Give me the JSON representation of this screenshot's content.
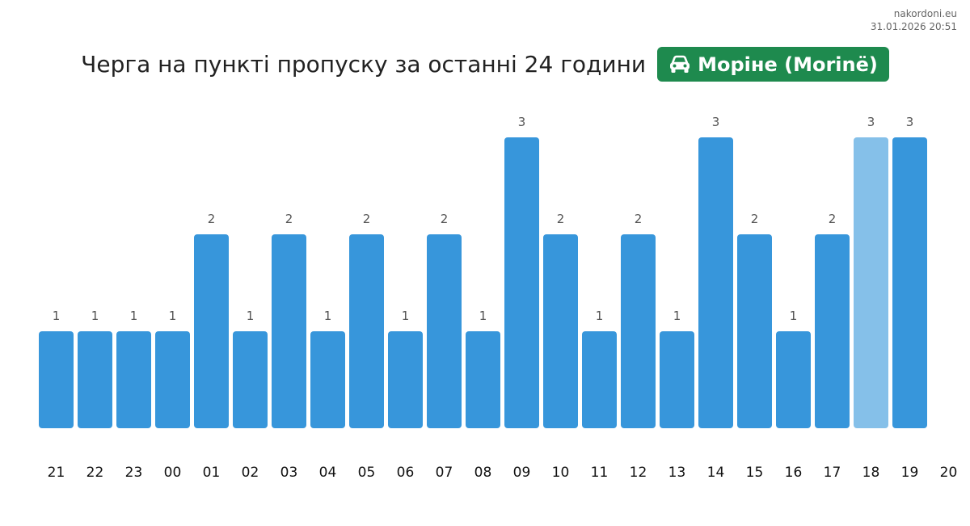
{
  "site": {
    "name": "nakordoni.eu",
    "timestamp": "31.01.2026 20:51"
  },
  "header": {
    "title": "Черга на пункті пропуску за останні 24 години",
    "checkpoint": "Моріне (Morinë)",
    "checkpoint_icon": "car-icon"
  },
  "colors": {
    "bar": "#3796db",
    "bar_highlight": "#85c0e9",
    "badge": "#1e8a4e"
  },
  "chart_data": {
    "type": "bar",
    "title": "Черга на пункті пропуску за останні 24 години",
    "categories": [
      "21",
      "22",
      "23",
      "00",
      "01",
      "02",
      "03",
      "04",
      "05",
      "06",
      "07",
      "08",
      "09",
      "10",
      "11",
      "12",
      "13",
      "14",
      "15",
      "16",
      "17",
      "18",
      "19"
    ],
    "values": [
      1,
      1,
      1,
      1,
      2,
      1,
      2,
      1,
      2,
      1,
      2,
      1,
      3,
      2,
      1,
      2,
      1,
      3,
      2,
      1,
      2,
      3,
      3
    ],
    "extra_tick_labels": [
      "20"
    ],
    "highlighted_category": "18",
    "data_labels": true,
    "ylim": [
      0,
      3
    ],
    "grid": false,
    "legend": "none"
  }
}
